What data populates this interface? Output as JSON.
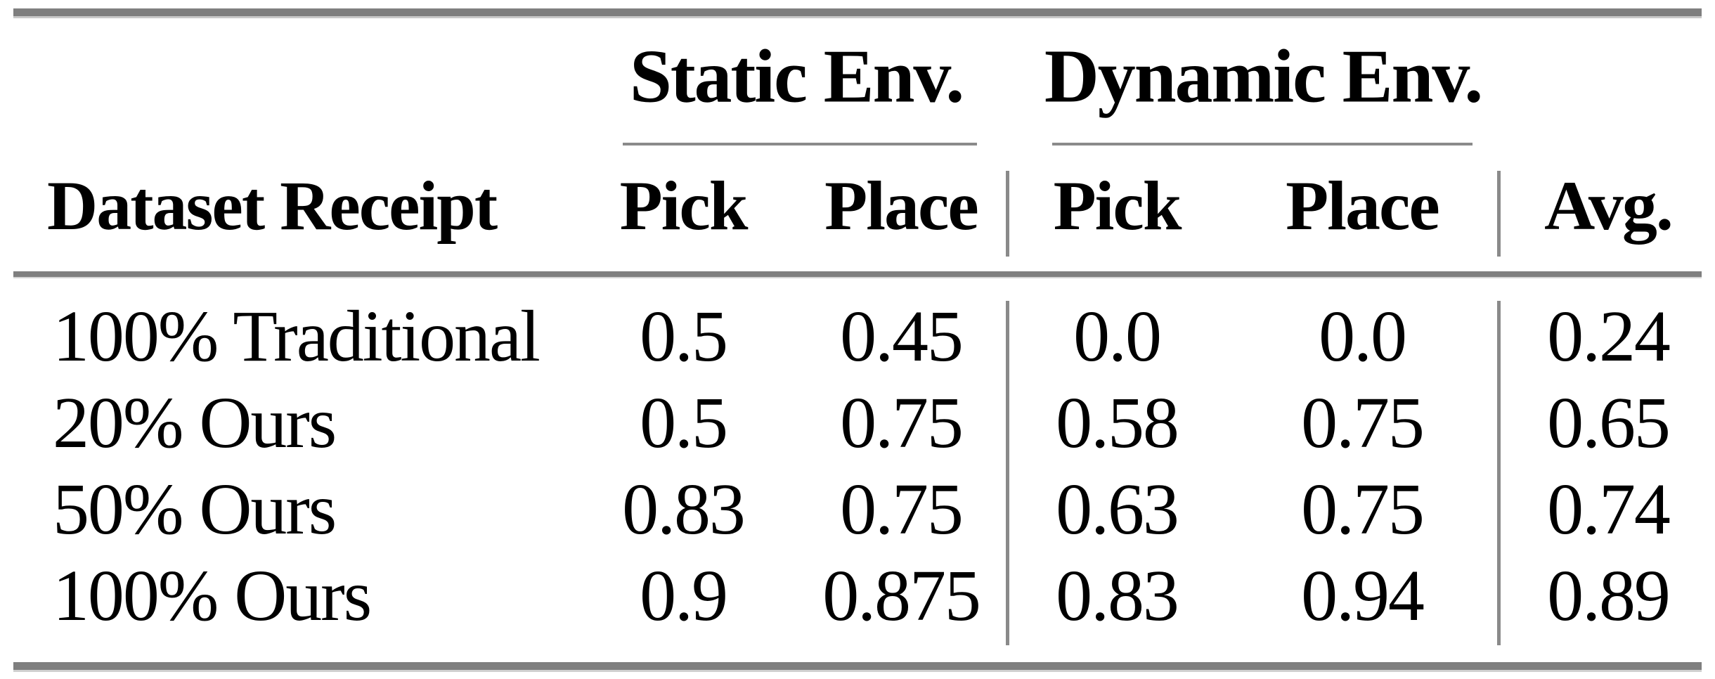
{
  "table": {
    "groups": [
      {
        "label": "Static Env."
      },
      {
        "label": "Dynamic Env."
      }
    ],
    "headers": {
      "row_header": "Dataset Receipt",
      "static_pick": "Pick",
      "static_place": "Place",
      "dynamic_pick": "Pick",
      "dynamic_place": "Place",
      "avg": "Avg."
    },
    "rows": [
      {
        "label": "100% Traditional",
        "static_pick": "0.5",
        "static_place": "0.45",
        "dynamic_pick": "0.0",
        "dynamic_place": "0.0",
        "avg": "0.24"
      },
      {
        "label": "20% Ours",
        "static_pick": "0.5",
        "static_place": "0.75",
        "dynamic_pick": "0.58",
        "dynamic_place": "0.75",
        "avg": "0.65"
      },
      {
        "label": "50% Ours",
        "static_pick": "0.83",
        "static_place": "0.75",
        "dynamic_pick": "0.63",
        "dynamic_place": "0.75",
        "avg": "0.74"
      },
      {
        "label": "100% Ours",
        "static_pick": "0.9",
        "static_place": "0.875",
        "dynamic_pick": "0.83",
        "dynamic_place": "0.94",
        "avg": "0.89"
      }
    ]
  },
  "colors": {
    "text": "#000000",
    "background": "#ffffff",
    "rule_gray": "#7f7f7f",
    "rule_light_edge": "#c9c9c9",
    "divider_gray": "#8a8a8a"
  },
  "chart_data": {
    "type": "table",
    "title": "",
    "column_groups": [
      "",
      "Static Env.",
      "Static Env.",
      "Dynamic Env.",
      "Dynamic Env.",
      ""
    ],
    "columns": [
      "Dataset Receipt",
      "Static Env. Pick",
      "Static Env. Place",
      "Dynamic Env. Pick",
      "Dynamic Env. Place",
      "Avg."
    ],
    "rows": [
      [
        "100% Traditional",
        0.5,
        0.45,
        0.0,
        0.0,
        0.24
      ],
      [
        "20% Ours",
        0.5,
        0.75,
        0.58,
        0.75,
        0.65
      ],
      [
        "50% Ours",
        0.83,
        0.75,
        0.63,
        0.75,
        0.74
      ],
      [
        "100% Ours",
        0.9,
        0.875,
        0.83,
        0.94,
        0.89
      ]
    ]
  }
}
